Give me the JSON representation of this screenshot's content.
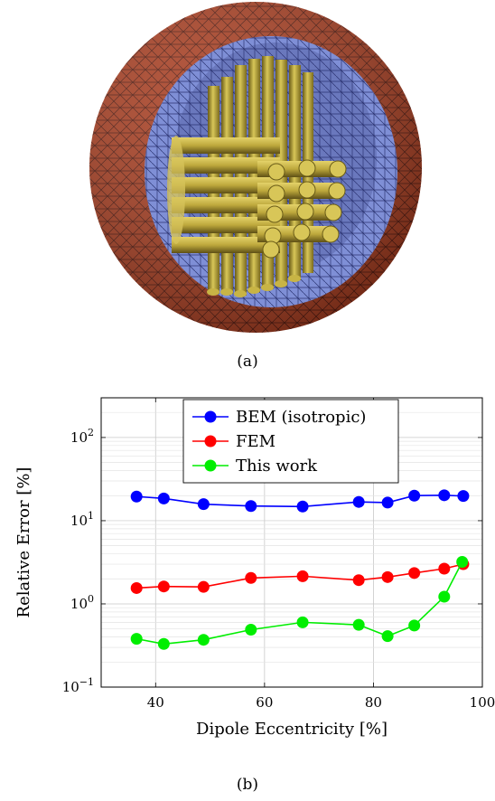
{
  "captions": {
    "a": "(a)",
    "b": "(b)"
  },
  "render": {
    "head_color": "#a83a1c",
    "head_edge": "#4a1208",
    "inner_color": "#7f8fd6",
    "inner_edge": "#2c3472",
    "electrode_color": "#c8b445",
    "electrode_edge": "#5e5016"
  },
  "chart_data": {
    "type": "line",
    "xlabel": "Dipole Eccentricity [%]",
    "ylabel": "Relative Error [%]",
    "xlim": [
      30,
      100
    ],
    "ylim": [
      0.1,
      300
    ],
    "yscale": "log",
    "xticks": [
      40,
      60,
      80,
      100
    ],
    "yticks": [
      {
        "value": 0.1,
        "base": "10",
        "exp": "−1"
      },
      {
        "value": 1,
        "base": "10",
        "exp": "0"
      },
      {
        "value": 10,
        "base": "10",
        "exp": "1"
      },
      {
        "value": 100,
        "base": "10",
        "exp": "2"
      }
    ],
    "grid": true,
    "legend_position": "top-center",
    "x": [
      36.5,
      41.5,
      48.8,
      57.5,
      67,
      77.3,
      82.6,
      87.5,
      93,
      96.5
    ],
    "series": [
      {
        "name": "BEM (isotropic)",
        "color": "#0000ff",
        "values": [
          19.5,
          18.5,
          15.8,
          15.0,
          14.8,
          16.8,
          16.5,
          20.0,
          20.2,
          19.8
        ]
      },
      {
        "name": "FEM",
        "color": "#ff0000",
        "values": [
          1.55,
          1.62,
          1.6,
          2.05,
          2.15,
          1.93,
          2.1,
          2.35,
          2.65,
          3.0
        ]
      },
      {
        "name": "This work",
        "color": "#00ee00",
        "x": [
          36.5,
          41.5,
          48.8,
          57.5,
          67,
          77.3,
          82.6,
          87.5,
          93,
          96.3
        ],
        "values": [
          0.38,
          0.33,
          0.37,
          0.49,
          0.6,
          0.56,
          0.41,
          0.55,
          1.22,
          3.2
        ]
      }
    ]
  }
}
